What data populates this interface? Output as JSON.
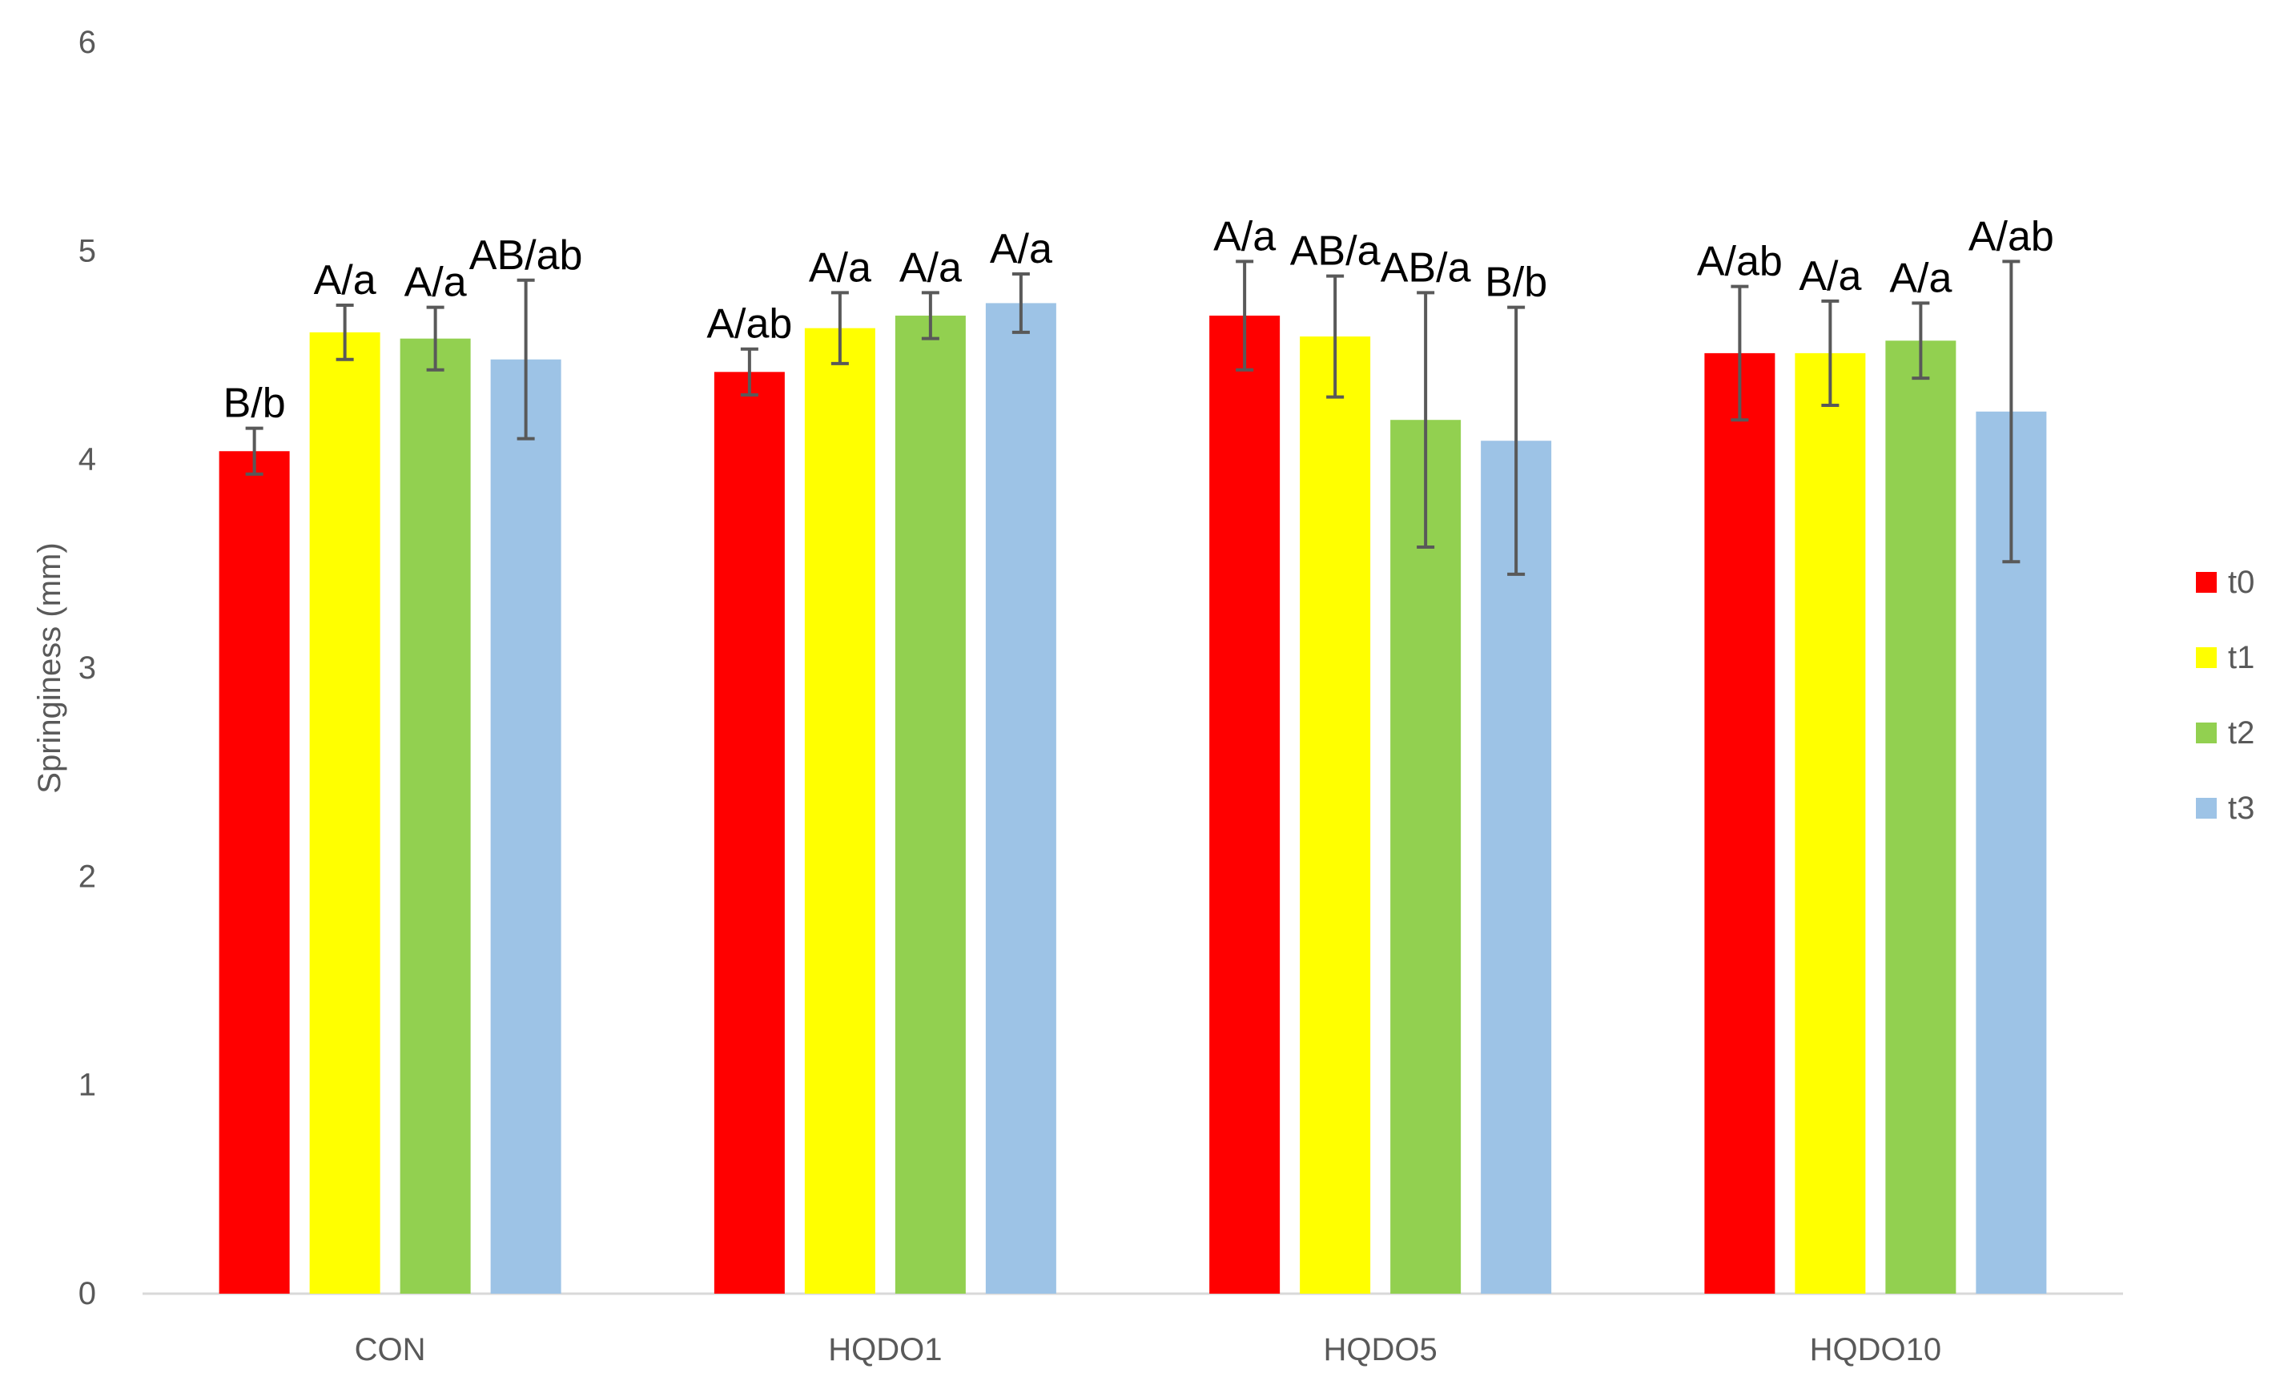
{
  "chart_data": {
    "type": "bar",
    "title": "",
    "xlabel": "",
    "ylabel": "Springiness (mm)",
    "ylim": [
      0,
      6
    ],
    "yticks": [
      0,
      1,
      2,
      3,
      4,
      5,
      6
    ],
    "grid": false,
    "legend_position": "right",
    "categories": [
      "CON",
      "HQDO1",
      "HQDO5",
      "HQDO10"
    ],
    "series": [
      {
        "name": "t0",
        "color": "#ff0000",
        "values": [
          4.04,
          4.42,
          4.69,
          4.51
        ],
        "errors": [
          0.11,
          0.11,
          0.26,
          0.32
        ],
        "labels": [
          "B/b",
          "A/ab",
          "A/a",
          "A/ab"
        ]
      },
      {
        "name": "t1",
        "color": "#ffff00",
        "values": [
          4.61,
          4.63,
          4.59,
          4.51
        ],
        "errors": [
          0.13,
          0.17,
          0.29,
          0.25
        ],
        "labels": [
          "A/a",
          "A/a",
          "AB/a",
          "A/a"
        ]
      },
      {
        "name": "t2",
        "color": "#92d050",
        "values": [
          4.58,
          4.69,
          4.19,
          4.57
        ],
        "errors": [
          0.15,
          0.11,
          0.61,
          0.18
        ],
        "labels": [
          "A/a",
          "A/a",
          "AB/a",
          "A/a"
        ]
      },
      {
        "name": "t3",
        "color": "#9dc3e6",
        "values": [
          4.48,
          4.75,
          4.09,
          4.23
        ],
        "errors": [
          0.38,
          0.14,
          0.64,
          0.72
        ],
        "labels": [
          "AB/ab",
          "A/a",
          "B/b",
          "A/ab"
        ]
      }
    ]
  }
}
